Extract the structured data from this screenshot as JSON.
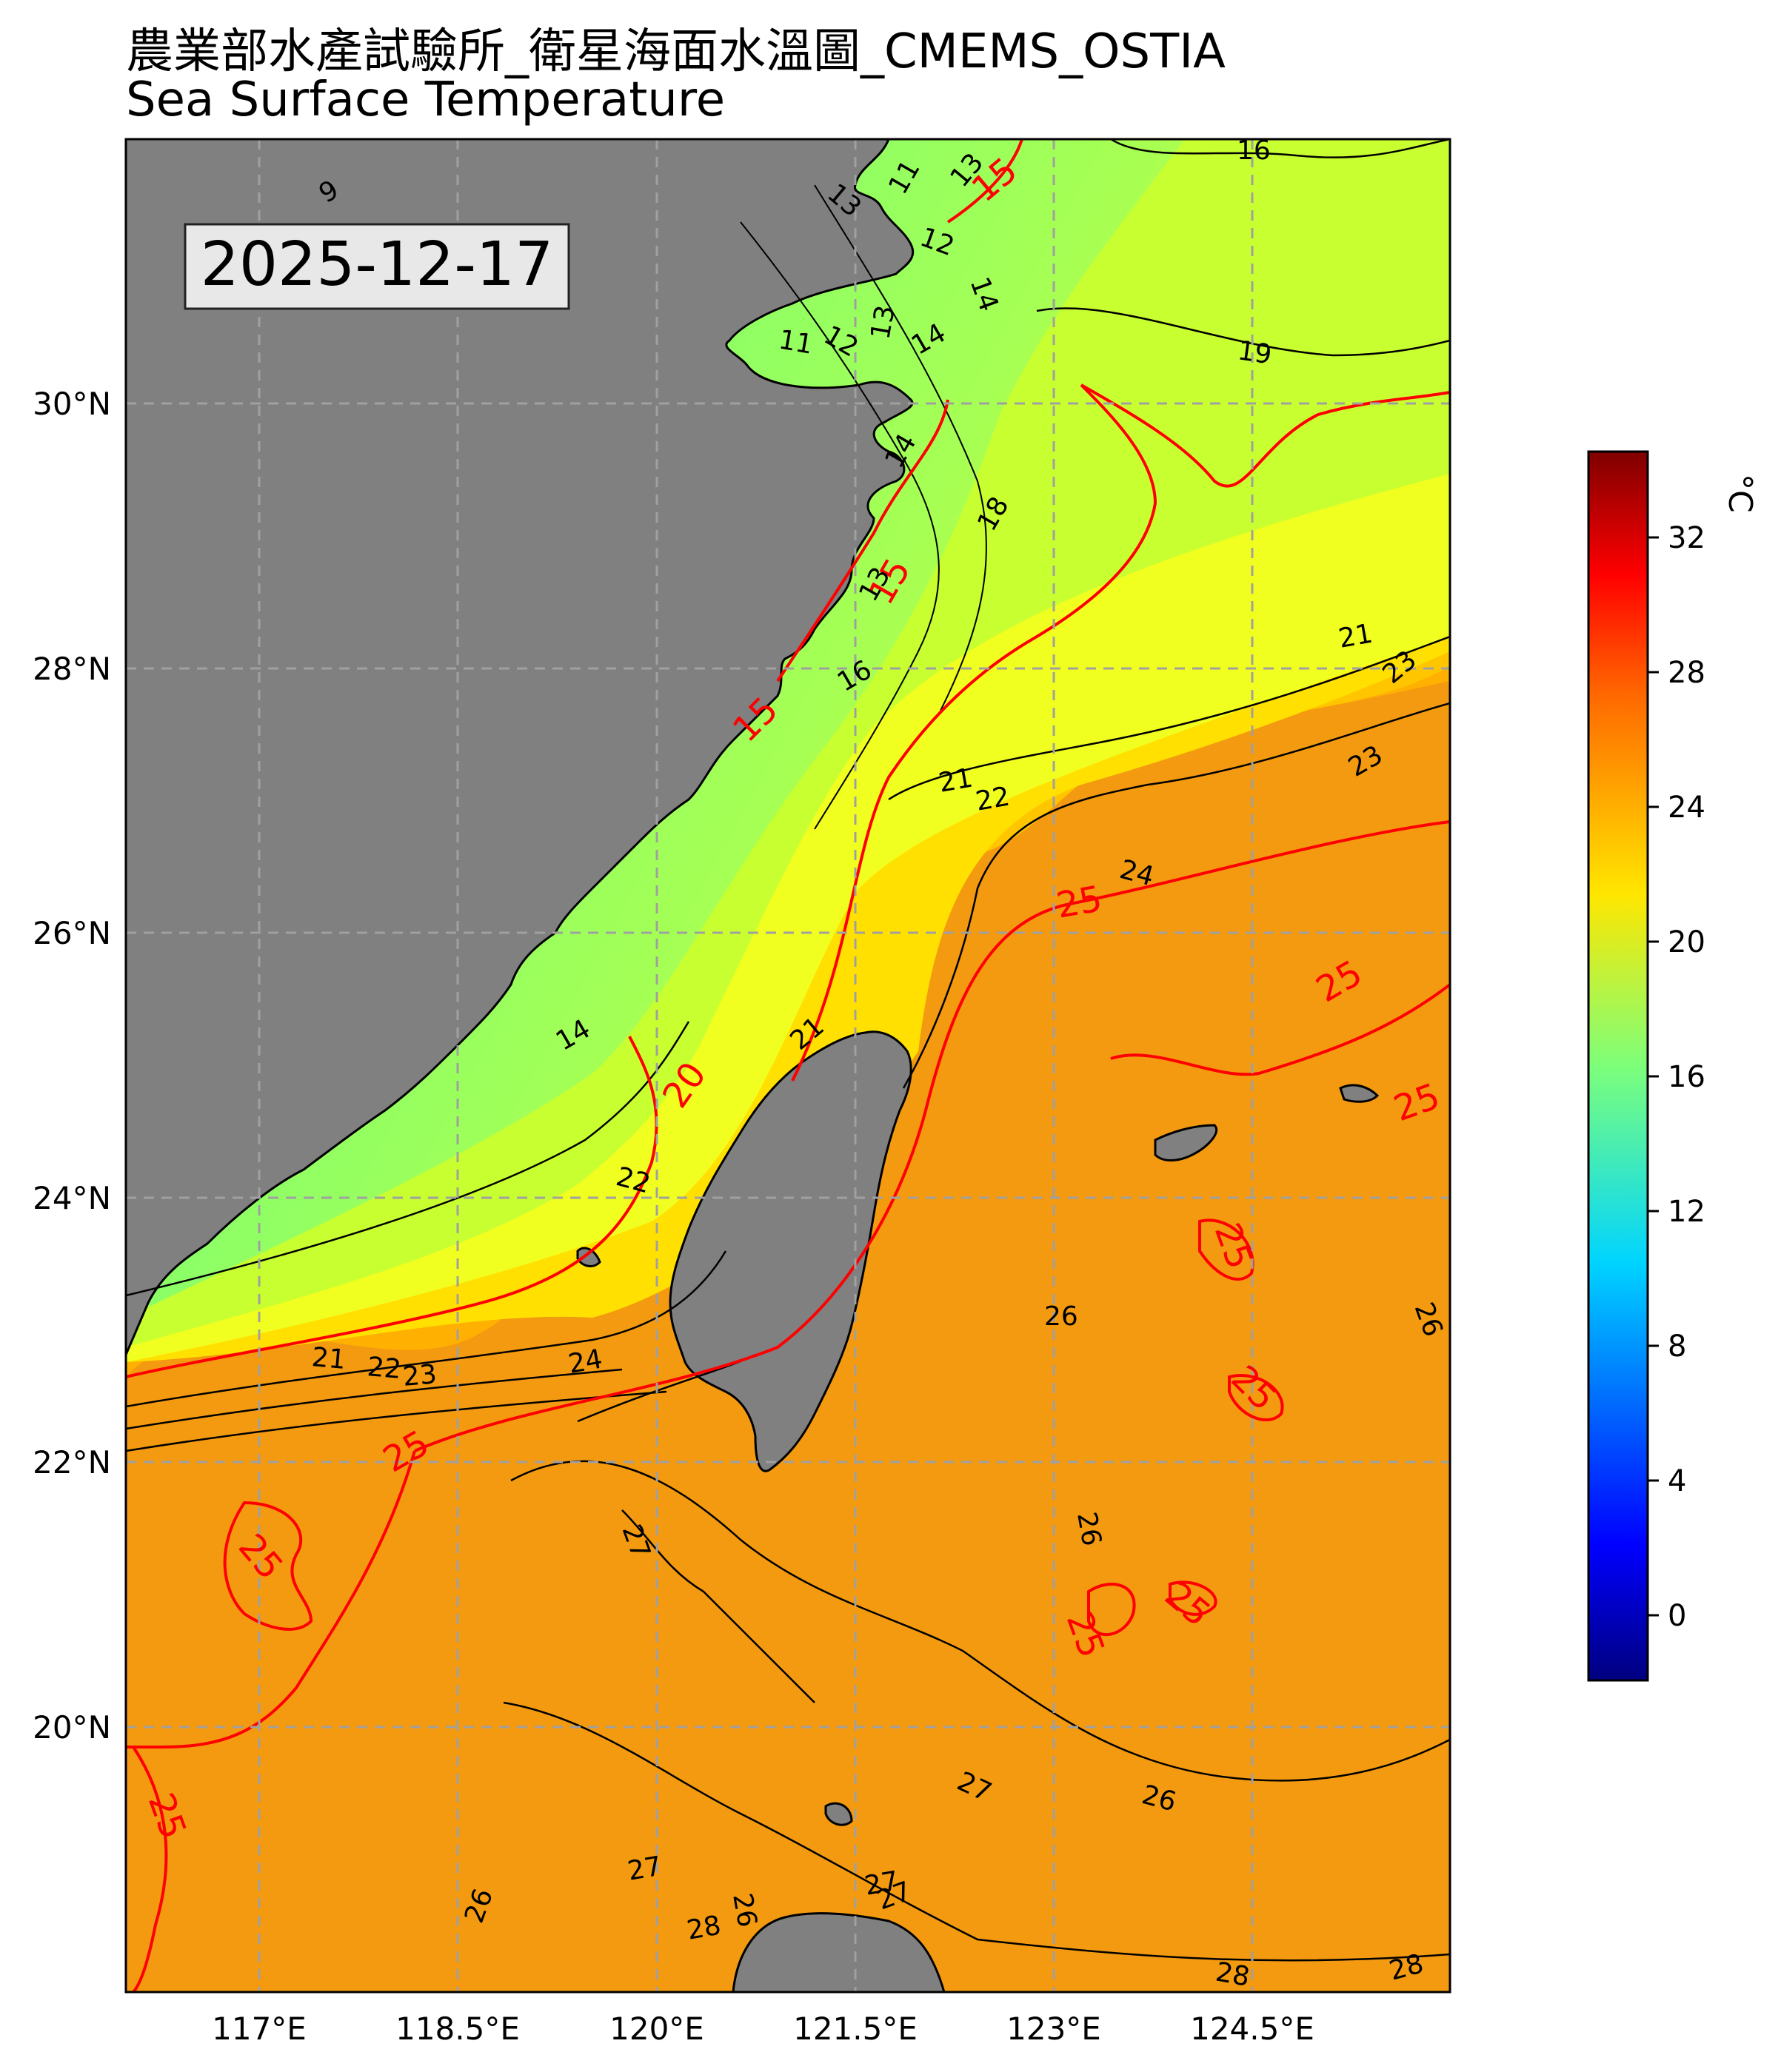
{
  "title": {
    "line1": "農業部水產試驗所_衛星海面水溫圖_CMEMS_OSTIA",
    "line2": "Sea Surface Temperature"
  },
  "map": {
    "date_label": "2025-12-17",
    "extent": {
      "lon": [
        116.35,
        125.35
      ],
      "lat": [
        18.0,
        32.0
      ]
    },
    "land_color": "#808080",
    "grid_style": "dashed gray",
    "lon_ticks": [
      "117°E",
      "118.5°E",
      "120°E",
      "121.5°E",
      "123°E",
      "124.5°E"
    ],
    "lat_ticks": [
      "30°N",
      "28°N",
      "26°N",
      "24°N",
      "22°N",
      "20°N"
    ],
    "red_contour_color": "#ff0000",
    "red_contour_labels": [
      "15",
      "15",
      "15",
      "20",
      "25",
      "25",
      "25",
      "25",
      "25",
      "25",
      "25",
      "25",
      "25",
      "25"
    ],
    "black_contour_labels": [
      "9",
      "16",
      "19",
      "13",
      "12",
      "11",
      "14",
      "13",
      "12",
      "11",
      "13",
      "14",
      "14",
      "18",
      "16",
      "14",
      "13",
      "21",
      "23",
      "23",
      "21",
      "22",
      "24",
      "21",
      "22",
      "21",
      "22",
      "23",
      "24",
      "26",
      "27",
      "26",
      "27",
      "26",
      "27",
      "27",
      "26",
      "28",
      "26",
      "27",
      "28",
      "28",
      "26"
    ]
  },
  "colorbar": {
    "unit": "°C",
    "ticks": [
      "32",
      "28",
      "24",
      "20",
      "16",
      "12",
      "8",
      "4",
      "0"
    ],
    "range": [
      -2,
      35
    ],
    "colormap": "jet"
  }
}
